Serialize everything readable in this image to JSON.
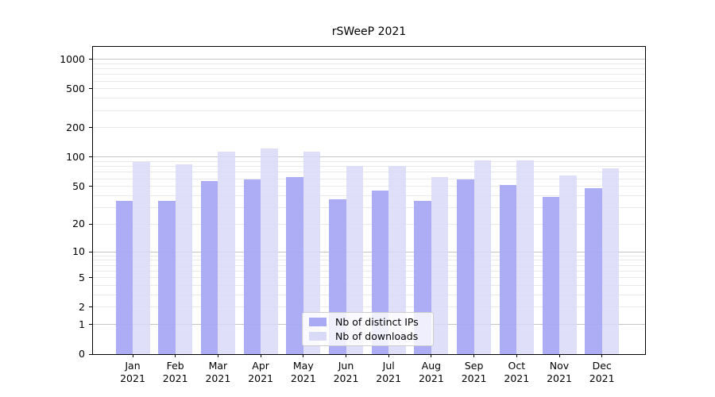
{
  "figure": {
    "background": "#ffffff"
  },
  "chart_data": {
    "type": "bar",
    "title": "rSWeeP 2021",
    "categories": [
      "Jan",
      "Feb",
      "Mar",
      "Apr",
      "May",
      "Jun",
      "Jul",
      "Aug",
      "Sep",
      "Oct",
      "Nov",
      "Dec"
    ],
    "x_tick_second_line": "2021",
    "series": [
      {
        "name": "Nb of distinct IPs",
        "color": "#a9a9f4",
        "values": [
          35,
          35,
          57,
          59,
          62,
          37,
          45,
          35,
          59,
          52,
          39,
          48
        ]
      },
      {
        "name": "Nb of downloads",
        "color": "#d9d9f8",
        "values": [
          89,
          85,
          113,
          124,
          113,
          81,
          82,
          62,
          92,
          93,
          65,
          77
        ]
      }
    ],
    "xlabel": "",
    "ylabel": "",
    "yscale": "log10(value+1)",
    "ylim": [
      0,
      1340
    ],
    "yticks": [
      0,
      1,
      2,
      5,
      10,
      20,
      50,
      100,
      200,
      500,
      1000
    ],
    "grid": {
      "on": true,
      "major_lines": [
        1,
        10,
        100,
        1000
      ],
      "minor_lines": [
        2,
        3,
        4,
        5,
        6,
        7,
        8,
        9,
        20,
        30,
        40,
        50,
        60,
        70,
        80,
        90,
        200,
        300,
        400,
        500,
        600,
        700,
        800,
        900
      ],
      "major_color": "#c4c4c4",
      "minor_color": "#e9e9e9"
    },
    "legend_position": "lower center-left inside plot"
  }
}
